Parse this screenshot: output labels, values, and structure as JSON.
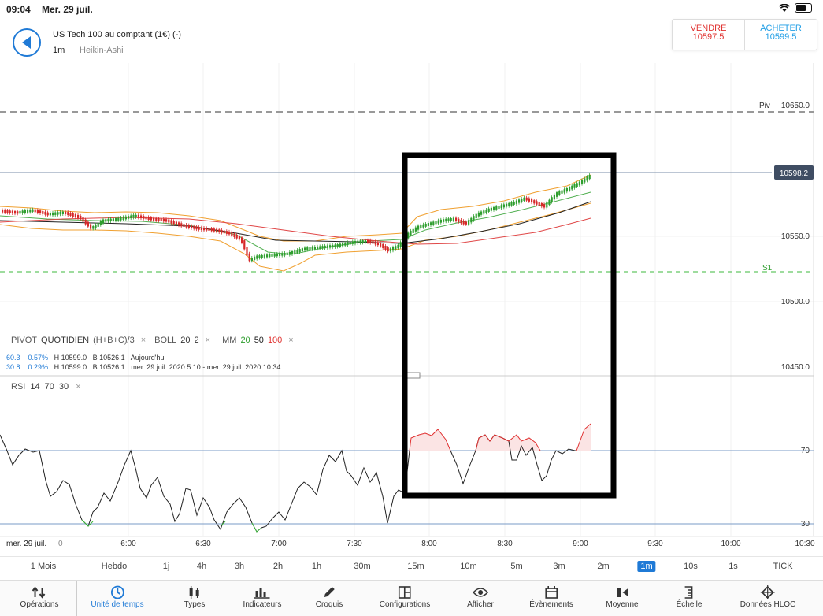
{
  "status": {
    "time": "09:04",
    "date": "Mer. 29 juil."
  },
  "header": {
    "instrument": "US Tech 100 au comptant (1€) (-)",
    "timeframe": "1m",
    "chart_type": "Heikin-Ashi"
  },
  "trade": {
    "sell_label": "VENDRE",
    "sell_price": "10597.5",
    "buy_label": "ACHETER",
    "buy_price": "10599.5"
  },
  "levels": {
    "piv_label": "Piv",
    "piv_price": "10650.0",
    "current_price": "10598.2",
    "s1_label": "S1",
    "axis": [
      "10550.0",
      "10500.0",
      "10450.0"
    ],
    "rsi_axis": [
      "70",
      "30"
    ]
  },
  "indicators": {
    "pivot": "PIVOT",
    "pivot_type": "QUOTIDIEN",
    "pivot_formula": "(H+B+C)/3",
    "boll": "BOLL",
    "boll_p1": "20",
    "boll_p2": "2",
    "mm": "MM",
    "mm_20": "20",
    "mm_50": "50",
    "mm_100": "100",
    "rsi": "RSI",
    "rsi_p": "14",
    "rsi_70": "70",
    "rsi_30": "30"
  },
  "stats": {
    "row1": {
      "a": "60.3",
      "b": "0.57%",
      "h": "H 10599.0",
      "l": "B 10526.1",
      "period": "Aujourd'hui"
    },
    "row2": {
      "a": "30.8",
      "b": "0.29%",
      "h": "H 10599.0",
      "l": "B 10526.1",
      "period": "mer. 29 juil. 2020 5:10 - mer. 29 juil. 2020 10:34"
    }
  },
  "xaxis": {
    "date": "mer. 29 juil.",
    "zero": "0",
    "ticks": [
      "6:00",
      "6:30",
      "7:00",
      "7:30",
      "8:00",
      "8:30",
      "9:00",
      "9:30",
      "10:00",
      "10:30"
    ]
  },
  "timeframes": [
    "1 Mois",
    "Hebdo",
    "1j",
    "4h",
    "3h",
    "2h",
    "1h",
    "30m",
    "15m",
    "10m",
    "5m",
    "3m",
    "2m",
    "1m",
    "10s",
    "1s",
    "TICK"
  ],
  "toolbar": [
    "Opérations",
    "Unité de temps",
    "Types",
    "Indicateurs",
    "Croquis",
    "Configurations",
    "Afficher",
    "Évènements",
    "Moyenne",
    "Échelle",
    "Données HLOC"
  ],
  "colors": {
    "accent": "#1f7ad6",
    "sell": "#e0312f",
    "buy": "#1f9ee6",
    "bull": "#2e9e2e",
    "bear": "#d62828",
    "boll": "#f0a030"
  }
}
